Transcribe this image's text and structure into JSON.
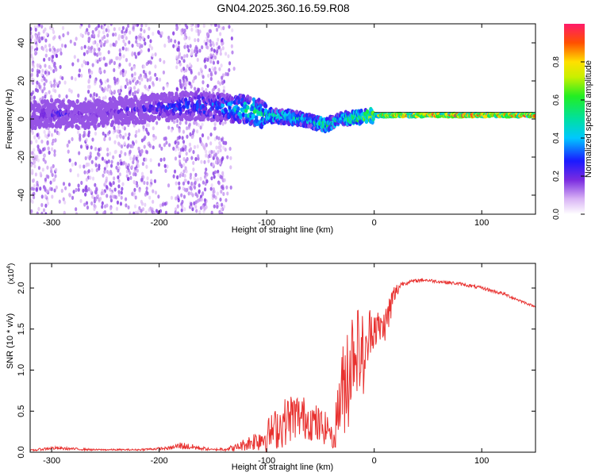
{
  "title": "GN04.2025.360.16.59.R08",
  "chart_data": [
    {
      "type": "heatmap",
      "xlabel": "Height of straight line (km)",
      "ylabel": "Frequency (Hz)",
      "xlim": [
        -320,
        150
      ],
      "ylim": [
        -50,
        50
      ],
      "x_ticks": [
        -300,
        -200,
        -100,
        0,
        100
      ],
      "y_ticks": [
        -40,
        -20,
        0,
        20,
        40
      ],
      "colorbar": {
        "label": "Normalized spectral amplitude",
        "range": [
          0,
          1
        ],
        "ticks": [
          "0.0",
          "0.2",
          "0.4",
          "0.6",
          "0.8"
        ]
      },
      "ridge": {
        "x": [
          -320,
          -300,
          -270,
          -240,
          -200,
          -170,
          -140,
          -120,
          -100,
          -80,
          -60,
          -45,
          -30,
          -10,
          0,
          20,
          50,
          100,
          150
        ],
        "freq": [
          2,
          3,
          2,
          4,
          6,
          7,
          6,
          5,
          2,
          1,
          -1,
          -3,
          0,
          1,
          2,
          2,
          2,
          2,
          2
        ],
        "amplitude": [
          0.2,
          0.25,
          0.2,
          0.2,
          0.3,
          0.35,
          0.4,
          0.55,
          0.55,
          0.55,
          0.45,
          0.6,
          0.5,
          0.7,
          0.75,
          0.9,
          0.95,
          0.95,
          0.95
        ]
      }
    },
    {
      "type": "line",
      "xlabel": "Height of straight line (km)",
      "ylabel": "SNR (10 * v/v)",
      "y_multiplier": "(x10",
      "y_multiplier_exp": "4",
      "xlim": [
        -320,
        150
      ],
      "ylim": [
        0,
        2.3
      ],
      "x_ticks": [
        -300,
        -200,
        -100,
        0,
        100
      ],
      "y_ticks": [
        "0.0",
        "0.5",
        "1.0",
        "1.5",
        "2.0"
      ],
      "y_tick_values": [
        0,
        0.5,
        1.0,
        1.5,
        2.0
      ],
      "line_color": "#e8312f",
      "envelope": {
        "x": [
          -320,
          -300,
          -260,
          -220,
          -190,
          -180,
          -150,
          -130,
          -115,
          -100,
          -85,
          -75,
          -60,
          -50,
          -42,
          -38,
          -33,
          -28,
          -25,
          -22,
          -18,
          -12,
          -8,
          -4,
          0,
          5,
          10,
          14,
          18,
          25,
          35,
          45,
          60,
          80,
          100,
          120,
          135,
          150
        ],
        "base": [
          0.02,
          0.05,
          0.03,
          0.03,
          0.05,
          0.08,
          0.03,
          0.05,
          0.12,
          0.2,
          0.35,
          0.45,
          0.4,
          0.3,
          0.3,
          0.1,
          0.6,
          0.8,
          1.0,
          1.1,
          1.3,
          1.2,
          1.1,
          1.5,
          1.55,
          1.5,
          1.55,
          1.7,
          1.9,
          2.05,
          2.08,
          2.1,
          2.08,
          2.05,
          2.0,
          1.93,
          1.85,
          1.77
        ],
        "amp": [
          0.01,
          0.02,
          0.01,
          0.01,
          0.02,
          0.05,
          0.01,
          0.04,
          0.1,
          0.2,
          0.3,
          0.3,
          0.25,
          0.25,
          0.15,
          0.08,
          0.5,
          0.6,
          0.8,
          0.7,
          0.5,
          0.6,
          0.4,
          0.3,
          0.3,
          0.2,
          0.2,
          0.25,
          0.15,
          0.03,
          0.02,
          0.02,
          0.02,
          0.02,
          0.02,
          0.02,
          0.02,
          0.01
        ]
      }
    }
  ]
}
